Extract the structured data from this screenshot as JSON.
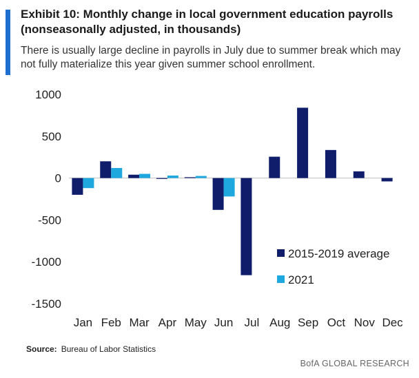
{
  "header": {
    "title": "Exhibit 10: Monthly change in local government education payrolls (nonseasonally adjusted, in thousands)",
    "subtitle": "There is usually large decline in payrolls in July due to summer break which may not fully materialize this year given summer school enrollment."
  },
  "colors": {
    "series_avg": "#0f1d6b",
    "series_2021": "#1fa8dd",
    "accent": "#1f6fd1"
  },
  "chart_data": {
    "type": "bar",
    "title": "Exhibit 10: Monthly change in local government education payrolls (nonseasonally adjusted, in thousands)",
    "categories": [
      "Jan",
      "Feb",
      "Mar",
      "Apr",
      "May",
      "Jun",
      "Jul",
      "Aug",
      "Sep",
      "Oct",
      "Nov",
      "Dec"
    ],
    "series": [
      {
        "name": "2015-2019 average",
        "values": [
          -200,
          200,
          40,
          -10,
          10,
          -380,
          -1160,
          255,
          840,
          335,
          80,
          -40
        ]
      },
      {
        "name": "2021",
        "values": [
          -120,
          120,
          50,
          30,
          25,
          -220,
          null,
          null,
          null,
          null,
          null,
          null
        ]
      }
    ],
    "ylim": [
      -1500,
      1000
    ],
    "yticks": [
      1000,
      500,
      0,
      -500,
      -1000,
      -1500
    ],
    "ytick_labels": [
      "1000",
      "500",
      "0",
      "-500",
      "-1000",
      "-1500"
    ],
    "legend_position": "lower-right",
    "grid": false
  },
  "footer": {
    "source_label": "Source:",
    "source_text": "Bureau of Labor Statistics",
    "brand": "BofA GLOBAL RESEARCH"
  }
}
